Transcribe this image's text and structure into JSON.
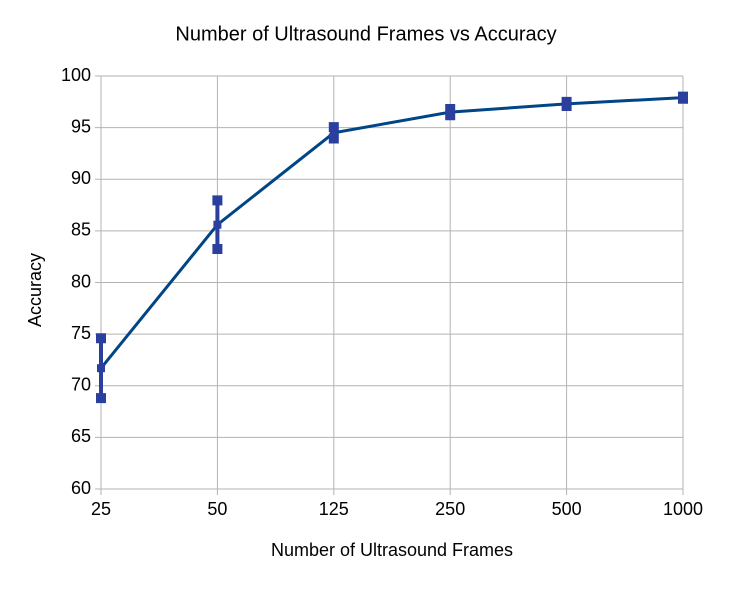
{
  "chart_data": {
    "type": "line",
    "title": "Number of Ultrasound Frames vs Accuracy",
    "x_label": "Number of Ultrasound Frames",
    "y_label": "Accuracy",
    "categories": [
      "25",
      "50",
      "125",
      "250",
      "500",
      "1000"
    ],
    "series": [
      {
        "name": "Accuracy",
        "color": "#004586",
        "error_color": "#2b3f9e",
        "values": [
          71.7,
          85.6,
          94.5,
          96.5,
          97.3,
          97.9
        ],
        "errors": [
          2.9,
          2.35,
          0.55,
          0.3,
          0.2,
          0.1
        ]
      }
    ],
    "ylim": [
      60,
      100
    ],
    "yticks": [
      60,
      65,
      70,
      75,
      80,
      85,
      90,
      95,
      100
    ],
    "grid": true
  }
}
